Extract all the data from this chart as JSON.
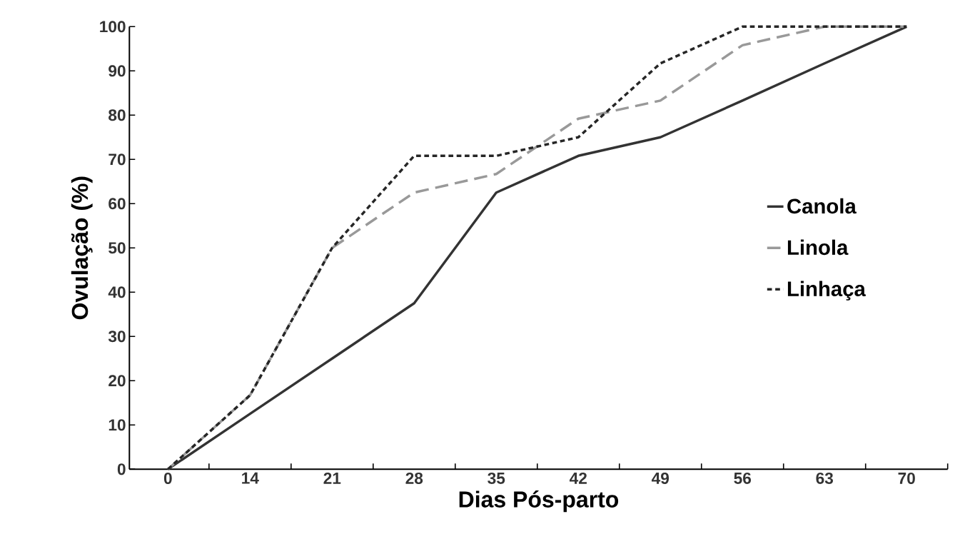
{
  "chart_data": {
    "type": "line",
    "xlabel": "Dias Pós-parto",
    "ylabel": "Ovulação (%)",
    "categories": [
      "0",
      "14",
      "21",
      "28",
      "35",
      "42",
      "49",
      "56",
      "63",
      "70"
    ],
    "series": [
      {
        "name": "Canola",
        "color": "#333333",
        "line_style": "solid",
        "values": [
          0,
          12.5,
          25,
          37.5,
          62.5,
          70.8,
          75,
          83.3,
          91.7,
          100
        ]
      },
      {
        "name": "Linola",
        "color": "#999999",
        "line_style": "dashed",
        "values": [
          0,
          16.7,
          50,
          62.5,
          66.7,
          79.2,
          83.3,
          95.8,
          100,
          100
        ]
      },
      {
        "name": "Linhaça",
        "color": "#262626",
        "line_style": "dotted",
        "values": [
          0,
          16.7,
          50,
          70.8,
          70.8,
          75,
          91.7,
          100,
          100,
          100
        ]
      }
    ],
    "ylim": [
      0,
      100
    ],
    "yticks": [
      0,
      10,
      20,
      30,
      40,
      50,
      60,
      70,
      80,
      90,
      100
    ],
    "grid": false,
    "legend": "right",
    "marker": "none"
  }
}
